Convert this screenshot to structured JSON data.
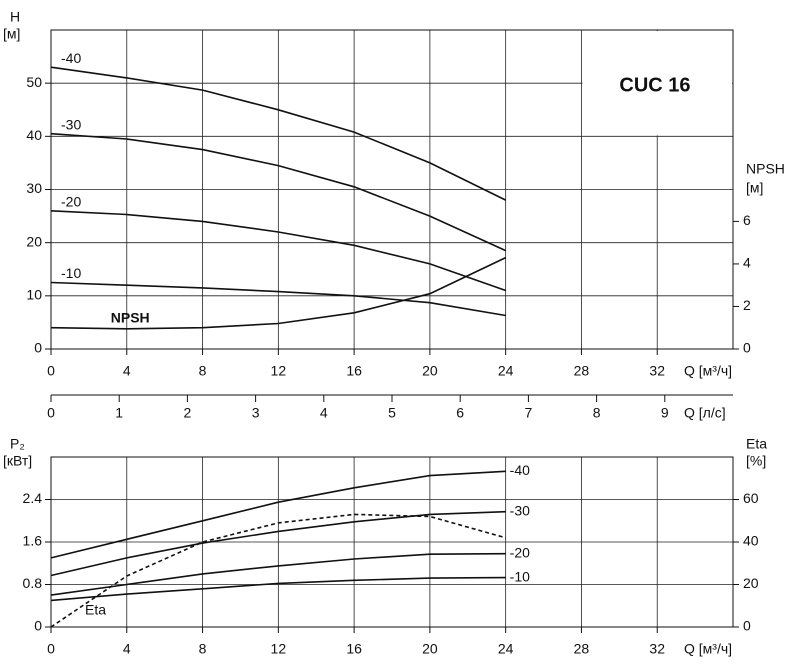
{
  "chart_data": [
    {
      "type": "line",
      "title": "CUC 16",
      "xlabel": "Q [м³/ч]",
      "ylabel": "H",
      "ylabel_unit": "[м]",
      "y2label": "NPSH",
      "y2label_unit": "[м]",
      "x2label": "Q [л/с]",
      "x2lim": [
        0,
        10
      ],
      "x2ticks": [
        0,
        1,
        2,
        3,
        4,
        5,
        6,
        7,
        8,
        9
      ],
      "x": [
        0,
        4,
        8,
        12,
        16,
        20,
        24
      ],
      "xlim": [
        0,
        36
      ],
      "xticks": [
        0,
        4,
        8,
        12,
        16,
        20,
        24,
        28,
        32
      ],
      "ylim": [
        0,
        60
      ],
      "yticks": [
        0,
        10,
        20,
        30,
        40,
        50
      ],
      "y2lim": [
        0,
        15
      ],
      "y2ticks": [
        0,
        2,
        4,
        6
      ],
      "grid": true,
      "label_position": "start",
      "series": [
        {
          "name": "-40",
          "color": "#111111",
          "values": [
            53,
            51,
            48.7,
            45,
            40.8,
            35,
            28
          ]
        },
        {
          "name": "-30",
          "color": "#111111",
          "values": [
            40.5,
            39.5,
            37.5,
            34.5,
            30.5,
            25,
            18.5
          ]
        },
        {
          "name": "-20",
          "color": "#111111",
          "values": [
            26,
            25.3,
            24,
            22,
            19.5,
            16,
            11
          ]
        },
        {
          "name": "-10",
          "color": "#111111",
          "values": [
            12.5,
            12,
            11.5,
            10.8,
            10,
            8.7,
            6.3
          ]
        },
        {
          "name": "NPSH",
          "color": "#111111",
          "axis": "y2",
          "values": [
            1.0,
            0.95,
            1.0,
            1.2,
            1.7,
            2.6,
            4.3
          ]
        }
      ]
    },
    {
      "type": "line",
      "xlabel": "Q [м³/ч]",
      "ylabel": "P₂",
      "ylabel_unit": "[кВт]",
      "y2label": "Eta",
      "y2label_unit": "[%]",
      "x": [
        0,
        4,
        8,
        12,
        16,
        20,
        24
      ],
      "xlim": [
        0,
        36
      ],
      "xticks": [
        0,
        4,
        8,
        12,
        16,
        20,
        24,
        28,
        32
      ],
      "ylim": [
        0,
        3.2
      ],
      "yticks": [
        0,
        0.8,
        1.6,
        2.4
      ],
      "y2lim": [
        0,
        80
      ],
      "y2ticks": [
        0,
        20,
        40,
        60
      ],
      "grid": true,
      "label_position": "end",
      "series": [
        {
          "name": "-40",
          "color": "#111111",
          "values": [
            1.3,
            1.65,
            2.0,
            2.35,
            2.62,
            2.85,
            2.93
          ]
        },
        {
          "name": "-30",
          "color": "#111111",
          "values": [
            0.97,
            1.3,
            1.58,
            1.8,
            1.98,
            2.12,
            2.17
          ]
        },
        {
          "name": "-20",
          "color": "#111111",
          "values": [
            0.6,
            0.8,
            1.0,
            1.15,
            1.28,
            1.37,
            1.38
          ]
        },
        {
          "name": "-10",
          "color": "#111111",
          "values": [
            0.5,
            0.62,
            0.72,
            0.82,
            0.88,
            0.92,
            0.93
          ]
        },
        {
          "name": "Eta",
          "color": "#111111",
          "axis": "y2",
          "dashed": true,
          "values": [
            0,
            24,
            40,
            49,
            53,
            52,
            42
          ]
        }
      ]
    }
  ]
}
